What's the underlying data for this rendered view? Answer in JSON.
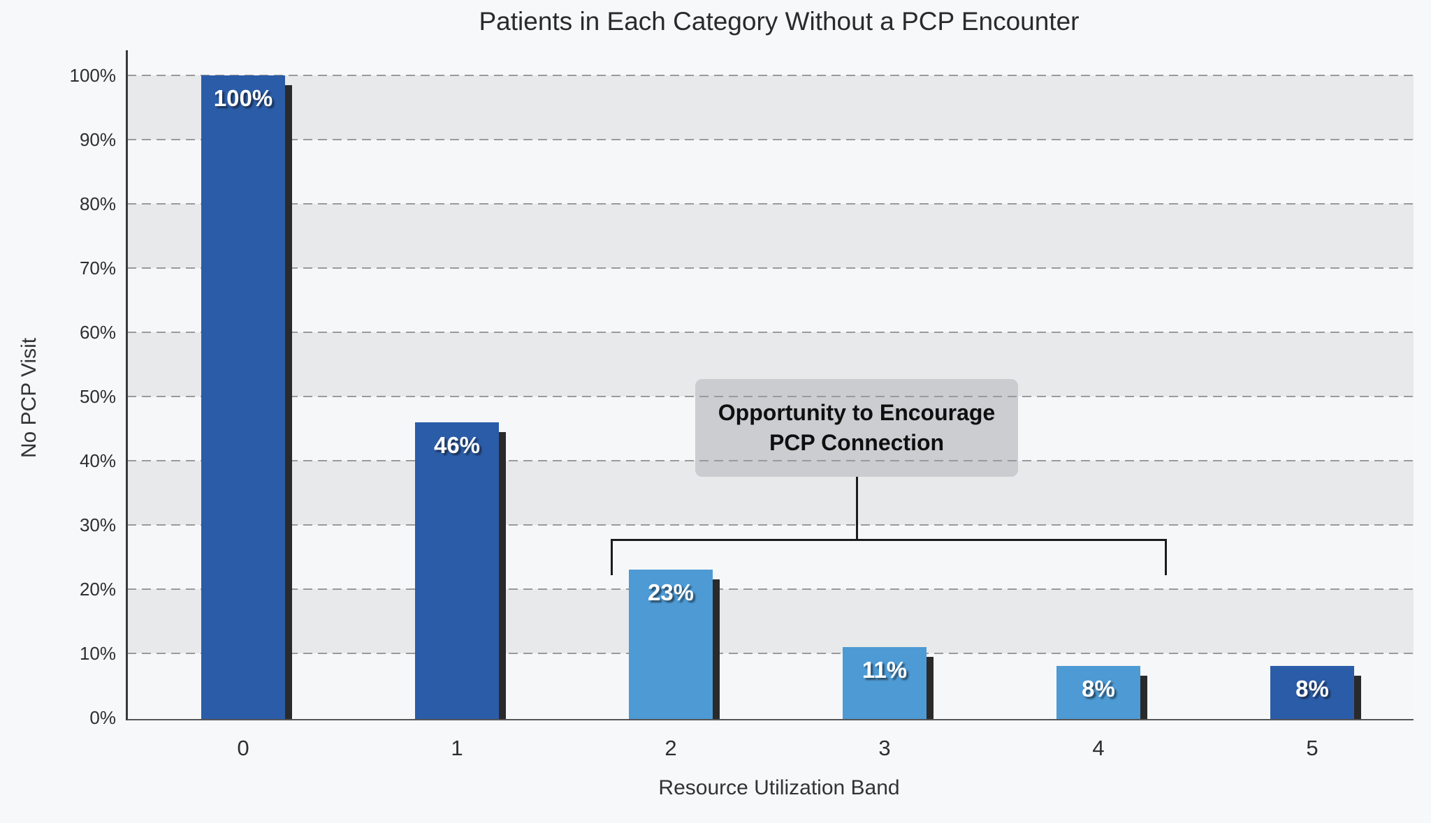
{
  "page": {
    "background": "#F7F8FA"
  },
  "chart_data": {
    "type": "bar",
    "title": "Patients in Each Category Without a PCP Encounter",
    "xlabel": "Resource Utilization Band",
    "ylabel": "No PCP Visit",
    "categories": [
      "0",
      "1",
      "2",
      "3",
      "4",
      "5"
    ],
    "series": [
      {
        "name": "No PCP Visit",
        "values": [
          100,
          46,
          23,
          11,
          8,
          8
        ]
      }
    ],
    "value_labels": [
      "100%",
      "46%",
      "23%",
      "11%",
      "8%",
      "8%"
    ],
    "bar_colors": [
      "#2B5CA8",
      "#2B5CA8",
      "#4D9AD4",
      "#4D9AD4",
      "#4D9AD4",
      "#2B5CA8"
    ],
    "ylim": [
      0,
      100
    ],
    "yticks": [
      0,
      10,
      20,
      30,
      40,
      50,
      60,
      70,
      80,
      90,
      100
    ],
    "ytick_labels": [
      "0%",
      "10%",
      "20%",
      "30%",
      "40%",
      "50%",
      "60%",
      "70%",
      "80%",
      "90%",
      "100%"
    ],
    "grid": {
      "horizontal": "dashed",
      "alternating_bands": true,
      "vertical": "off"
    },
    "legend": "none",
    "annotation": {
      "lines": [
        "Opportunity to Encourage",
        "PCP Connection"
      ],
      "bracket_spans_categories": [
        "2",
        "3",
        "4"
      ],
      "box_fill": "#C5C7CB"
    }
  },
  "style_colors": {
    "dark_bar": "#2B5CA8",
    "light_bar": "#4D9AD4",
    "bar_shadow": "#2A2A2A",
    "band_gray": "#E8E9EA",
    "band_light": "#F6F7F8",
    "gridline": "#9A9A9A"
  }
}
